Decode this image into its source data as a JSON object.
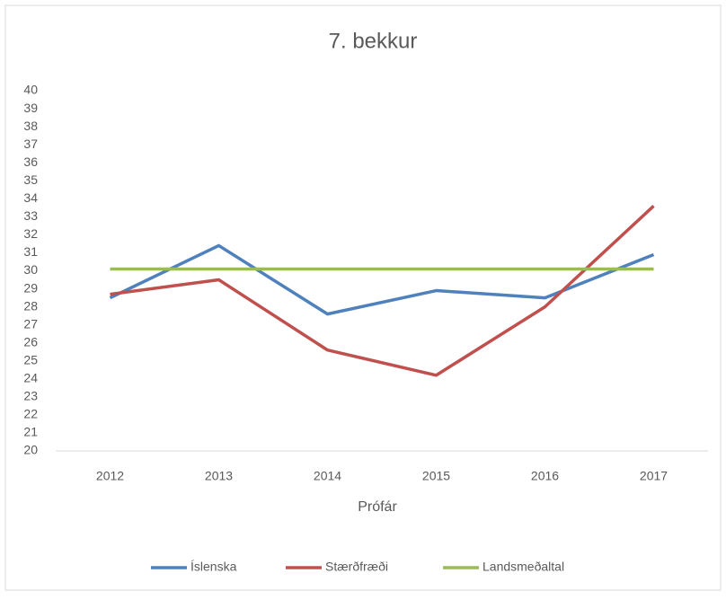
{
  "chart_data": {
    "type": "line",
    "title": "7. bekkur",
    "x_label": "Prófár",
    "categories": [
      "2012",
      "2013",
      "2014",
      "2015",
      "2016",
      "2017"
    ],
    "series": [
      {
        "name": "Íslenska",
        "color": "#4f81bd",
        "values": [
          28.5,
          31.4,
          27.6,
          28.9,
          28.5,
          30.9
        ]
      },
      {
        "name": "Stærðfræði",
        "color": "#c0504d",
        "values": [
          28.7,
          29.5,
          25.6,
          24.2,
          28.0,
          33.6
        ]
      },
      {
        "name": "Landsmeðaltal",
        "color": "#9bbb59",
        "values": [
          30.1,
          30.1,
          30.1,
          30.1,
          30.1,
          30.1
        ]
      }
    ],
    "ylim": [
      20,
      40
    ],
    "yticks": [
      20,
      21,
      22,
      23,
      24,
      25,
      26,
      27,
      28,
      29,
      30,
      31,
      32,
      33,
      34,
      35,
      36,
      37,
      38,
      39,
      40
    ],
    "grid": false,
    "legend": "bottom"
  }
}
